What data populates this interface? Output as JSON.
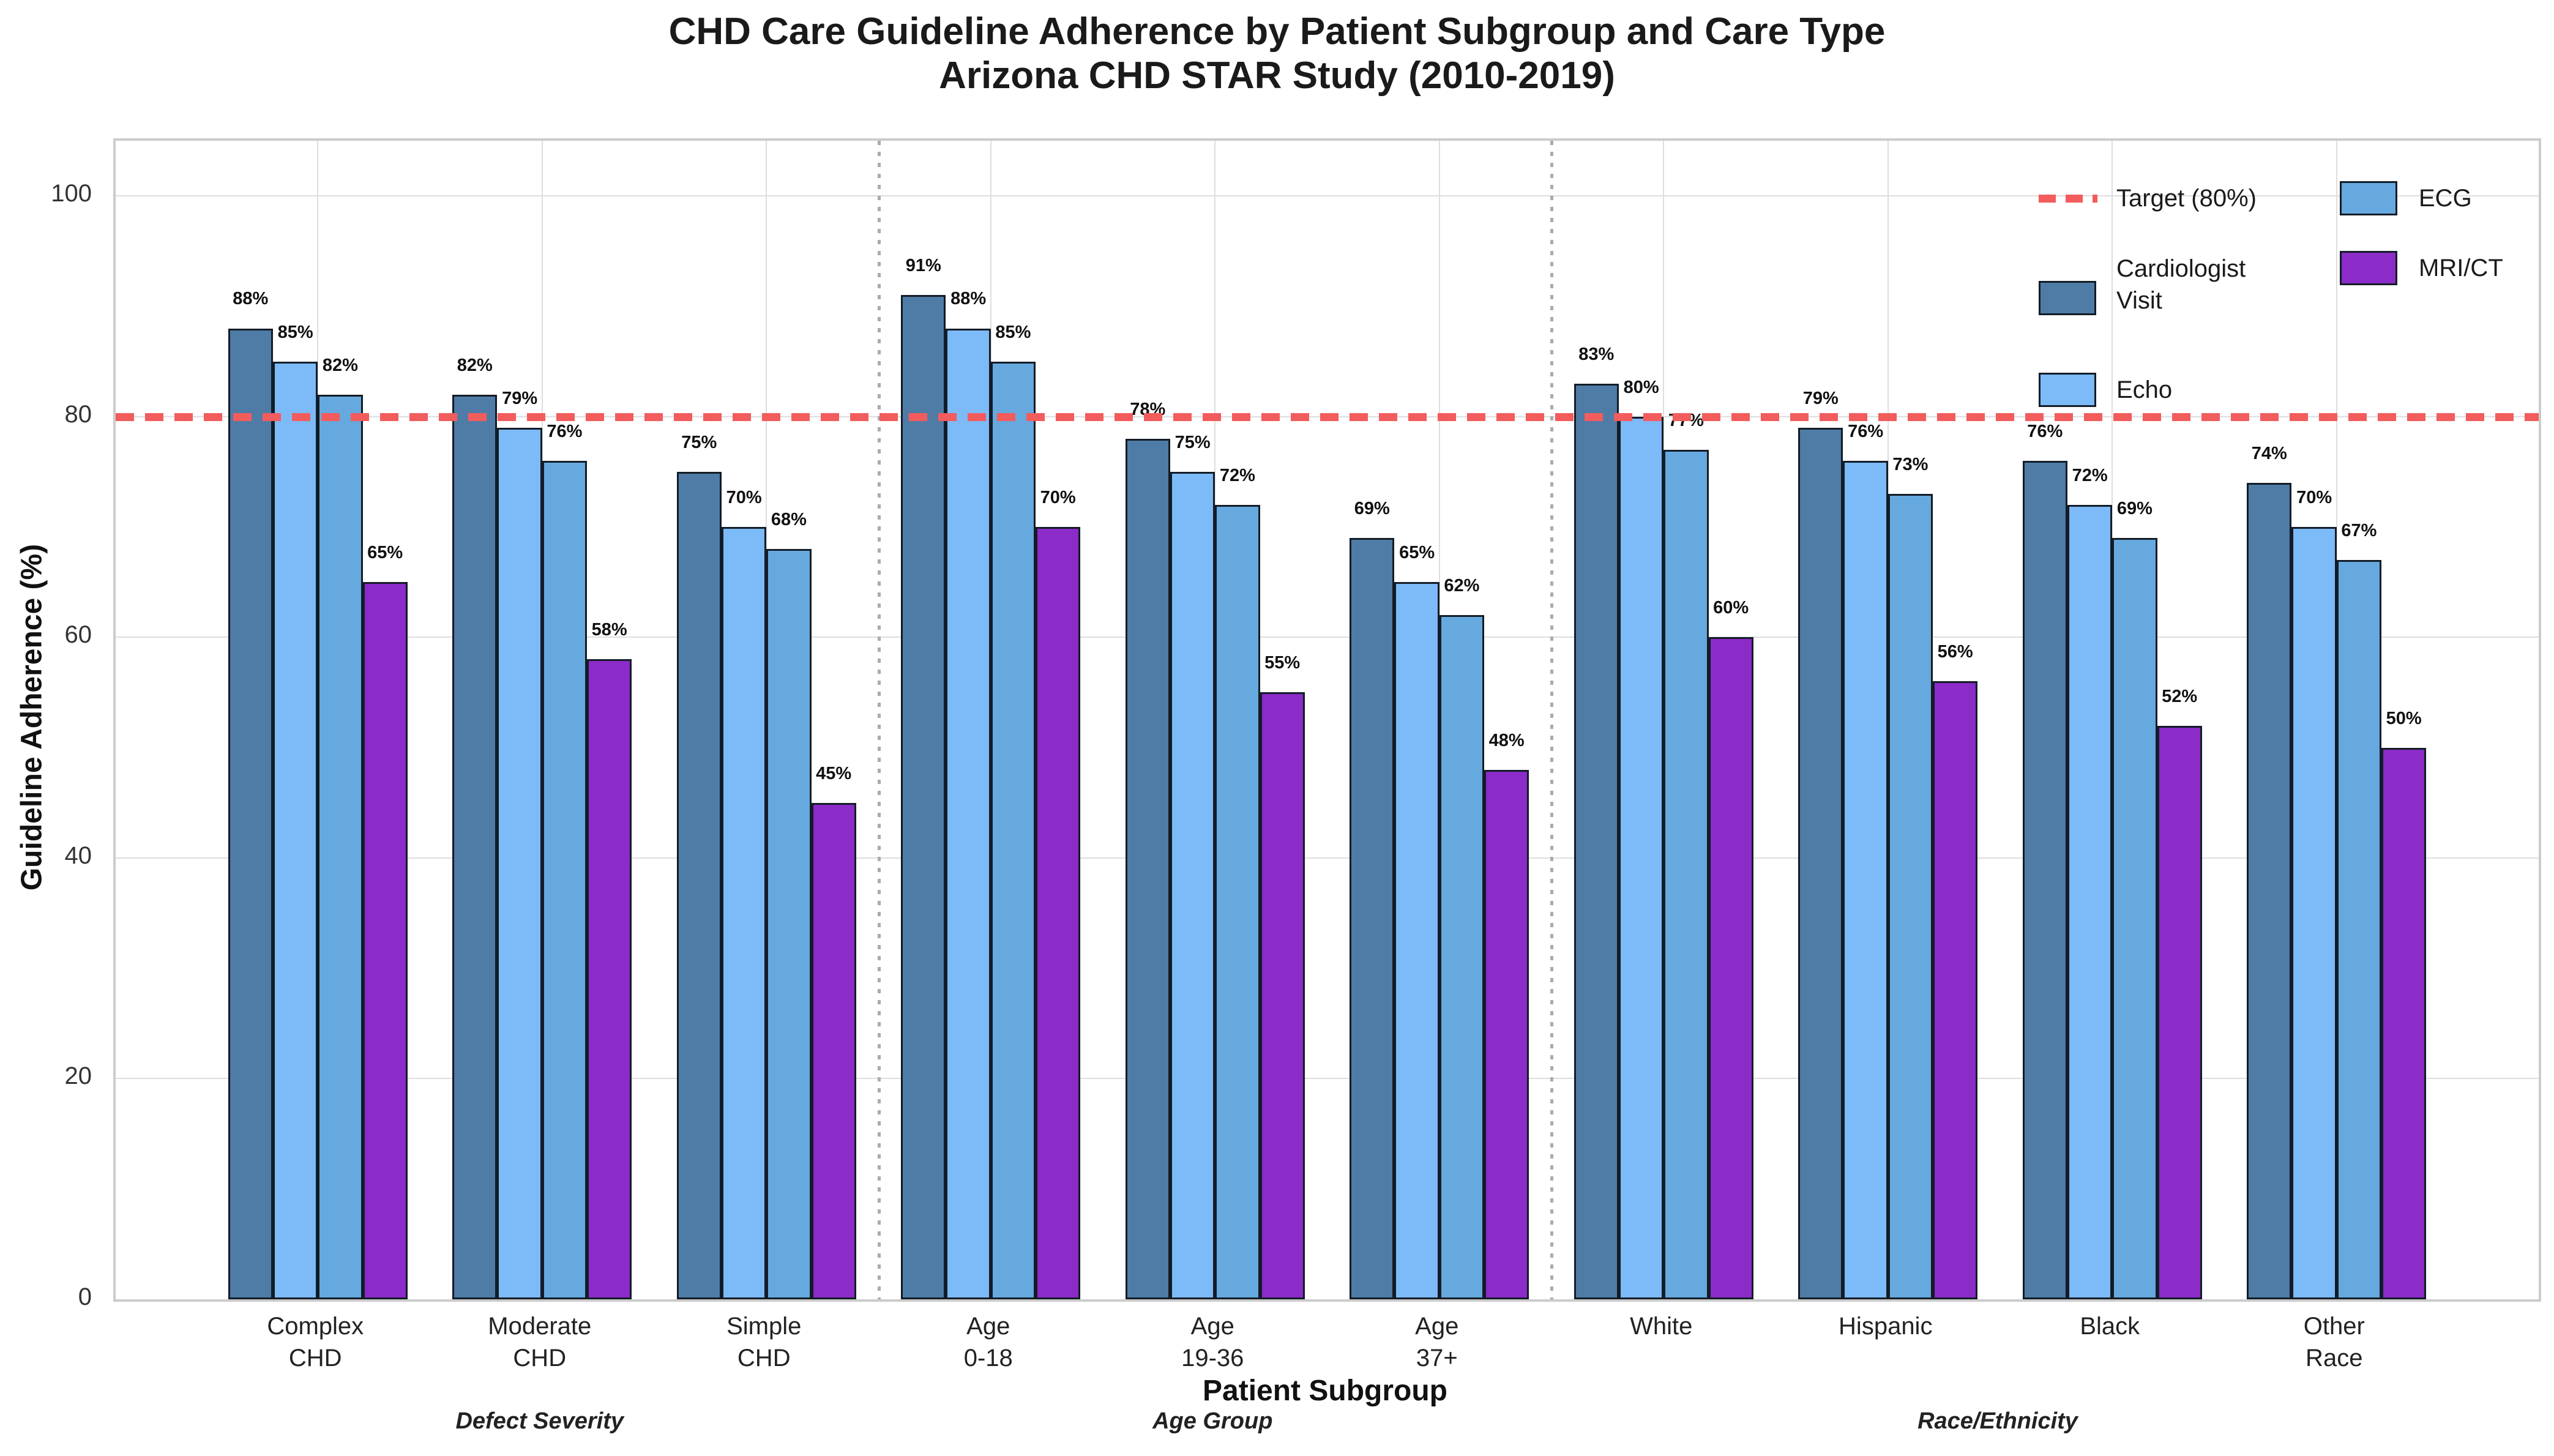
{
  "title": {
    "line1": "CHD Care Guideline Adherence by Patient Subgroup and Care Type",
    "line2": "Arizona CHD STAR Study (2010-2019)"
  },
  "axes": {
    "y_label": "Guideline Adherence (%)",
    "x_label": "Patient Subgroup",
    "y_ticks": [
      0,
      20,
      40,
      60,
      80,
      100
    ]
  },
  "chart_data": {
    "type": "bar",
    "title": "CHD Care Guideline Adherence by Patient Subgroup and Care Type",
    "subtitle": "Arizona CHD STAR Study (2010-2019)",
    "xlabel": "Patient Subgroup",
    "ylabel": "Guideline Adherence (%)",
    "ylim": [
      0,
      105
    ],
    "grid": true,
    "legend_position": "upper right",
    "value_label_format": "{v}%",
    "categories": [
      "Complex\nCHD",
      "Moderate\nCHD",
      "Simple\nCHD",
      "Age\n0-18",
      "Age\n19-36",
      "Age\n37+",
      "White",
      "Hispanic",
      "Black",
      "Other\nRace"
    ],
    "series": [
      {
        "name": "Cardiologist Visit",
        "color": "#4f7ca6",
        "values": [
          88,
          82,
          75,
          91,
          78,
          69,
          83,
          79,
          76,
          74
        ]
      },
      {
        "name": "Echo",
        "color": "#7dbaf8",
        "values": [
          85,
          79,
          70,
          88,
          75,
          65,
          80,
          76,
          72,
          70
        ]
      },
      {
        "name": "ECG",
        "color": "#66a9df",
        "values": [
          82,
          76,
          68,
          85,
          72,
          62,
          77,
          73,
          69,
          67
        ]
      },
      {
        "name": "MRI/CT",
        "color": "#8b2bc8",
        "values": [
          65,
          58,
          45,
          70,
          55,
          48,
          60,
          56,
          52,
          50
        ]
      }
    ],
    "target_line": {
      "label": "Target (80%)",
      "value": 80,
      "color": "#f25c5c",
      "style": "dashed"
    },
    "group_annotations": [
      {
        "label": "Defect Severity",
        "from": 0,
        "to": 2
      },
      {
        "label": "Age Group",
        "from": 3,
        "to": 5
      },
      {
        "label": "Race/Ethnicity",
        "from": 6,
        "to": 9
      }
    ],
    "separators_after": [
      2,
      5
    ]
  }
}
